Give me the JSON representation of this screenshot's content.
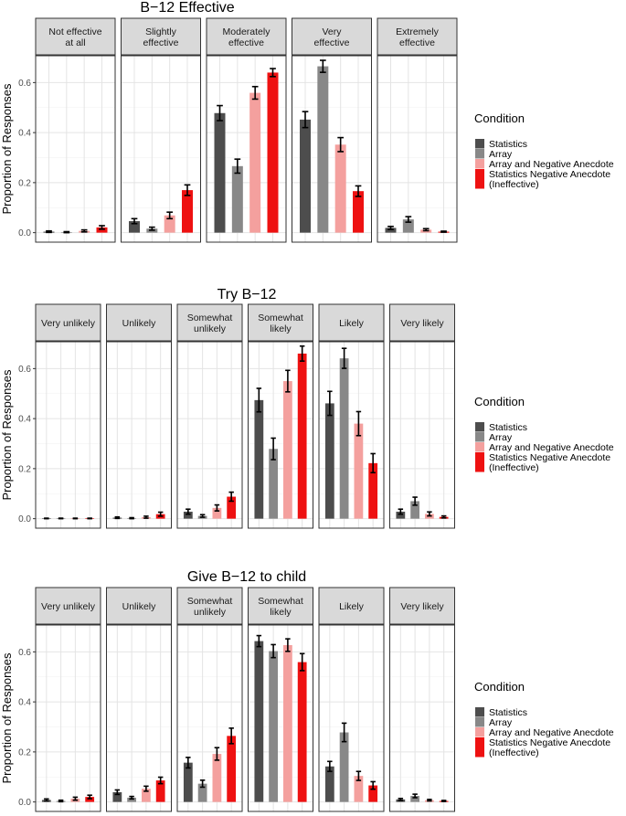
{
  "figure": {
    "ylabel": "Proportion of Responses"
  },
  "legend": {
    "title": "Condition",
    "entries": [
      {
        "line1": "Statistics",
        "line2": ""
      },
      {
        "line1": "Array",
        "line2": ""
      },
      {
        "line1": "Array and Negative Anecdote",
        "line2": ""
      },
      {
        "line1": "Statistics Negative Anecdote",
        "line2": "(Ineffective)"
      }
    ],
    "colors": [
      "#4d4d4d",
      "#888888",
      "#f4a09e",
      "#ee1111"
    ]
  },
  "chart_data": [
    {
      "type": "bar",
      "title": "B−12 Effective",
      "ylabel": "Proportion of Responses",
      "ylim": [
        0,
        0.7
      ],
      "yticks": [
        "0.0",
        "0.2",
        "0.4",
        "0.6"
      ],
      "series_names": [
        "Statistics",
        "Array",
        "Array and Negative Anecdote",
        "Statistics Negative Anecdote (Ineffective)"
      ],
      "facets": [
        {
          "label": [
            "Not effective",
            "at all"
          ],
          "values": [
            0.004,
            0.002,
            0.007,
            0.021
          ],
          "errors": [
            0.003,
            0.002,
            0.004,
            0.007
          ]
        },
        {
          "label": [
            "Slightly",
            "effective"
          ],
          "values": [
            0.046,
            0.016,
            0.069,
            0.17
          ],
          "errors": [
            0.01,
            0.006,
            0.013,
            0.021
          ]
        },
        {
          "label": [
            "Moderately",
            "effective"
          ],
          "values": [
            0.478,
            0.266,
            0.559,
            0.64
          ],
          "errors": [
            0.03,
            0.028,
            0.025,
            0.016
          ]
        },
        {
          "label": [
            "Very",
            "effective"
          ],
          "values": [
            0.452,
            0.665,
            0.352,
            0.166
          ],
          "errors": [
            0.032,
            0.024,
            0.028,
            0.021
          ]
        },
        {
          "label": [
            "Extremely",
            "effective"
          ],
          "values": [
            0.019,
            0.053,
            0.012,
            0.004
          ],
          "errors": [
            0.006,
            0.011,
            0.004,
            0.002
          ]
        }
      ]
    },
    {
      "type": "bar",
      "title": "Try B−12",
      "ylabel": "Proportion of Responses",
      "ylim": [
        0,
        0.7
      ],
      "yticks": [
        "0.0",
        "0.2",
        "0.4",
        "0.6"
      ],
      "series_names": [
        "Statistics",
        "Array",
        "Array and Negative Anecdote",
        "Statistics Negative Anecdote (Ineffective)"
      ],
      "facets": [
        {
          "label": [
            "Very unlikely"
          ],
          "values": [
            0.001,
            0.001,
            0.001,
            0.001
          ],
          "errors": [
            0.001,
            0.001,
            0.001,
            0.001
          ]
        },
        {
          "label": [
            "Unlikely"
          ],
          "values": [
            0.004,
            0.002,
            0.006,
            0.018
          ],
          "errors": [
            0.003,
            0.002,
            0.004,
            0.008
          ]
        },
        {
          "label": [
            "Somewhat",
            "unlikely"
          ],
          "values": [
            0.028,
            0.011,
            0.043,
            0.088
          ],
          "errors": [
            0.01,
            0.005,
            0.012,
            0.018
          ]
        },
        {
          "label": [
            "Somewhat",
            "likely"
          ],
          "values": [
            0.474,
            0.279,
            0.55,
            0.66
          ],
          "errors": [
            0.047,
            0.043,
            0.043,
            0.03
          ]
        },
        {
          "label": [
            "Likely"
          ],
          "values": [
            0.461,
            0.641,
            0.38,
            0.222
          ],
          "errors": [
            0.048,
            0.04,
            0.048,
            0.038
          ]
        },
        {
          "label": [
            "Very likely"
          ],
          "values": [
            0.028,
            0.07,
            0.019,
            0.007
          ],
          "errors": [
            0.01,
            0.016,
            0.008,
            0.004
          ]
        }
      ]
    },
    {
      "type": "bar",
      "title": "Give B−12 to child",
      "ylabel": "Proportion of Responses",
      "ylim": [
        0,
        0.7
      ],
      "yticks": [
        "0.0",
        "0.2",
        "0.4",
        "0.6"
      ],
      "series_names": [
        "Statistics",
        "Array",
        "Array and Negative Anecdote",
        "Statistics Negative Anecdote (Ineffective)"
      ],
      "facets": [
        {
          "label": [
            "Very unlikely"
          ],
          "values": [
            0.008,
            0.004,
            0.013,
            0.02
          ],
          "errors": [
            0.004,
            0.003,
            0.006,
            0.007
          ]
        },
        {
          "label": [
            "Unlikely"
          ],
          "values": [
            0.039,
            0.017,
            0.053,
            0.086
          ],
          "errors": [
            0.009,
            0.005,
            0.01,
            0.013
          ]
        },
        {
          "label": [
            "Somewhat",
            "unlikely"
          ],
          "values": [
            0.157,
            0.073,
            0.192,
            0.264
          ],
          "errors": [
            0.021,
            0.014,
            0.025,
            0.031
          ]
        },
        {
          "label": [
            "Somewhat",
            "likely"
          ],
          "values": [
            0.643,
            0.603,
            0.627,
            0.559
          ],
          "errors": [
            0.022,
            0.026,
            0.025,
            0.034
          ]
        },
        {
          "label": [
            "Likely"
          ],
          "values": [
            0.142,
            0.278,
            0.104,
            0.066
          ],
          "errors": [
            0.02,
            0.037,
            0.018,
            0.015
          ]
        },
        {
          "label": [
            "Very likely"
          ],
          "values": [
            0.01,
            0.024,
            0.007,
            0.004
          ],
          "errors": [
            0.004,
            0.007,
            0.003,
            0.002
          ]
        }
      ]
    }
  ]
}
